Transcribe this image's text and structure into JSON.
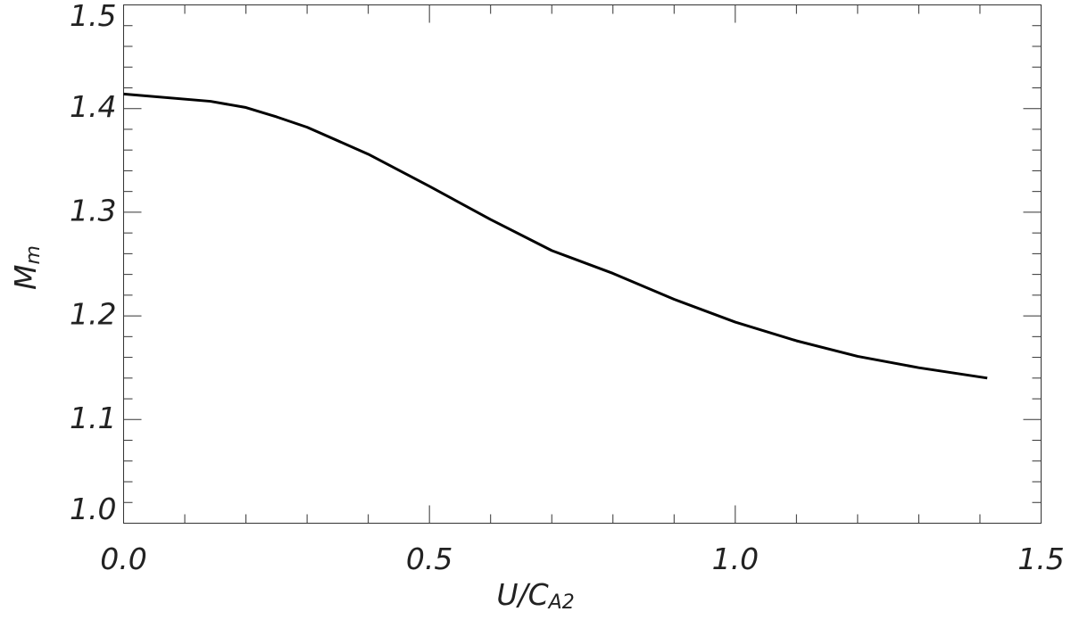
{
  "chart_data": {
    "type": "line",
    "xlabel": {
      "text": "U/C",
      "sub": "A2"
    },
    "ylabel": {
      "text": "M",
      "sub": "m"
    },
    "x": [
      0,
      0.142,
      0.2,
      0.25,
      0.3,
      0.4,
      0.5,
      0.6,
      0.7,
      0.8,
      0.9,
      1.0,
      1.1,
      1.2,
      1.3,
      1.412
    ],
    "series": [
      {
        "color": "#000000",
        "values": [
          1.414,
          1.407,
          1.401,
          1.392,
          1.382,
          1.356,
          1.325,
          1.293,
          1.263,
          1.241,
          1.216,
          1.194,
          1.176,
          1.161,
          1.15,
          1.14
        ]
      }
    ],
    "xlim": [
      0,
      1.5
    ],
    "ylim": [
      1.0,
      1.5
    ],
    "xticks": [
      {
        "value": 0,
        "label": "0.0"
      },
      0.5,
      {
        "value": 1.0,
        "label": "1.0"
      },
      1.5
    ],
    "yticks": [
      {
        "value": 1.0,
        "label": "1.0"
      },
      1.1,
      1.2,
      1.3,
      1.4,
      1.5
    ]
  }
}
